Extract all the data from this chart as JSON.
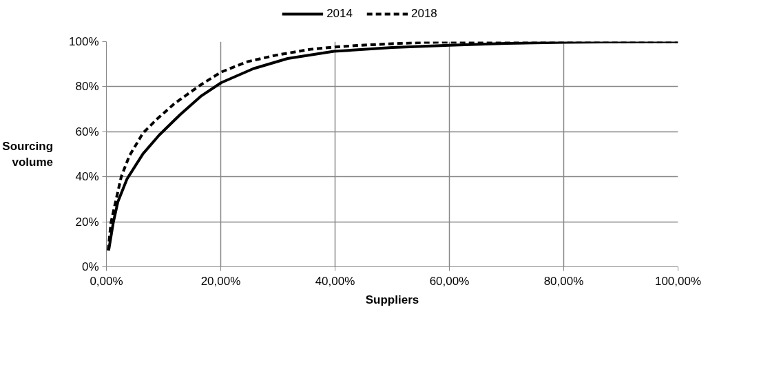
{
  "chart_data": {
    "type": "line",
    "xlabel": "Suppliers",
    "ylabel": "Sourcing volume",
    "series": [
      {
        "name": "2014",
        "color": "#000000",
        "line_style": "solid",
        "x": [
          0.4,
          1.2,
          2.0,
          3.6,
          6.4,
          9.2,
          12.9,
          16.5,
          20.1,
          25.7,
          31.7,
          39.8,
          50,
          60,
          70,
          80,
          90,
          100
        ],
        "values": [
          7.3,
          19.6,
          28.8,
          39,
          50.2,
          58.4,
          67.6,
          75.7,
          81.8,
          88,
          92.5,
          95.7,
          97.4,
          98.4,
          99.2,
          99.7,
          99.9,
          100
        ]
      },
      {
        "name": "2018",
        "color": "#000000",
        "line_style": "dashed",
        "x": [
          0.3,
          0.8,
          1.6,
          2.6,
          4.0,
          6.4,
          8.8,
          12,
          16.5,
          20,
          24.5,
          29.7,
          35.7,
          40,
          43.8,
          50,
          56,
          60,
          80,
          100
        ],
        "values": [
          7.3,
          19.6,
          28.8,
          40,
          49.2,
          59.4,
          65.5,
          72.7,
          80.8,
          86.4,
          91,
          94,
          96.6,
          97.6,
          98.3,
          99.1,
          99.7,
          99.8,
          99.9,
          100
        ]
      }
    ],
    "xlim": [
      0,
      100
    ],
    "ylim": [
      0,
      100
    ],
    "xticks": [
      {
        "value": 0,
        "label": "0,00%"
      },
      {
        "value": 20,
        "label": "20,00%"
      },
      {
        "value": 40,
        "label": "40,00%"
      },
      {
        "value": 60,
        "label": "60,00%"
      },
      {
        "value": 80,
        "label": "80,00%"
      },
      {
        "value": 100,
        "label": "100,00%"
      }
    ],
    "yticks": [
      {
        "value": 0,
        "label": "0%"
      },
      {
        "value": 20,
        "label": "20%"
      },
      {
        "value": 40,
        "label": "40%"
      },
      {
        "value": 60,
        "label": "60%"
      },
      {
        "value": 80,
        "label": "80%"
      },
      {
        "value": 100,
        "label": "100%"
      }
    ],
    "grid": true,
    "legend": "top",
    "marker": "none"
  }
}
